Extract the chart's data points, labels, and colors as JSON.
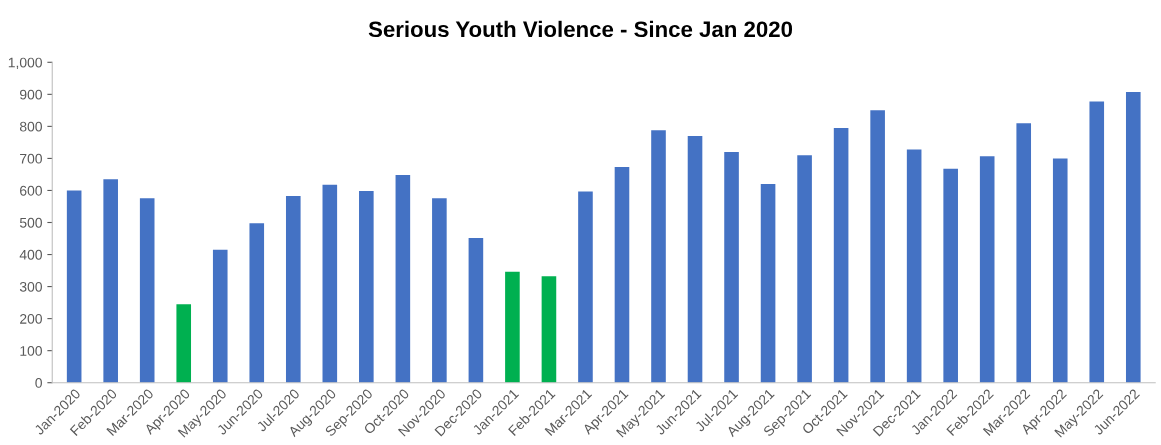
{
  "chart_data": {
    "type": "bar",
    "title": "Serious Youth Violence - Since Jan 2020",
    "categories": [
      "Jan-2020",
      "Feb-2020",
      "Mar-2020",
      "Apr-2020",
      "May-2020",
      "Jun-2020",
      "Jul-2020",
      "Aug-2020",
      "Sep-2020",
      "Oct-2020",
      "Nov-2020",
      "Dec-2020",
      "Jan-2021",
      "Feb-2021",
      "Mar-2021",
      "Apr-2021",
      "May-2021",
      "Jun-2021",
      "Jul-2021",
      "Aug-2021",
      "Sep-2021",
      "Oct-2021",
      "Nov-2021",
      "Dec-2021",
      "Jan-2022",
      "Feb-2022",
      "Mar-2022",
      "Apr-2022",
      "May-2022",
      "Jun-2022"
    ],
    "values": [
      600,
      635,
      576,
      245,
      415,
      498,
      583,
      618,
      598,
      648,
      576,
      452,
      346,
      332,
      597,
      673,
      788,
      770,
      720,
      620,
      710,
      795,
      850,
      728,
      668,
      707,
      810,
      700,
      878,
      907
    ],
    "colors": [
      "#4472c4",
      "#4472c4",
      "#4472c4",
      "#00b050",
      "#4472c4",
      "#4472c4",
      "#4472c4",
      "#4472c4",
      "#4472c4",
      "#4472c4",
      "#4472c4",
      "#4472c4",
      "#00b050",
      "#00b050",
      "#4472c4",
      "#4472c4",
      "#4472c4",
      "#4472c4",
      "#4472c4",
      "#4472c4",
      "#4472c4",
      "#4472c4",
      "#4472c4",
      "#4472c4",
      "#4472c4",
      "#4472c4",
      "#4472c4",
      "#4472c4",
      "#4472c4",
      "#4472c4"
    ],
    "ylim": [
      0,
      1000
    ],
    "yticks": [
      0,
      100,
      200,
      300,
      400,
      500,
      600,
      700,
      800,
      900,
      {
        "value": 1000,
        "label": "1,000"
      }
    ],
    "grid": false,
    "legend": false
  }
}
